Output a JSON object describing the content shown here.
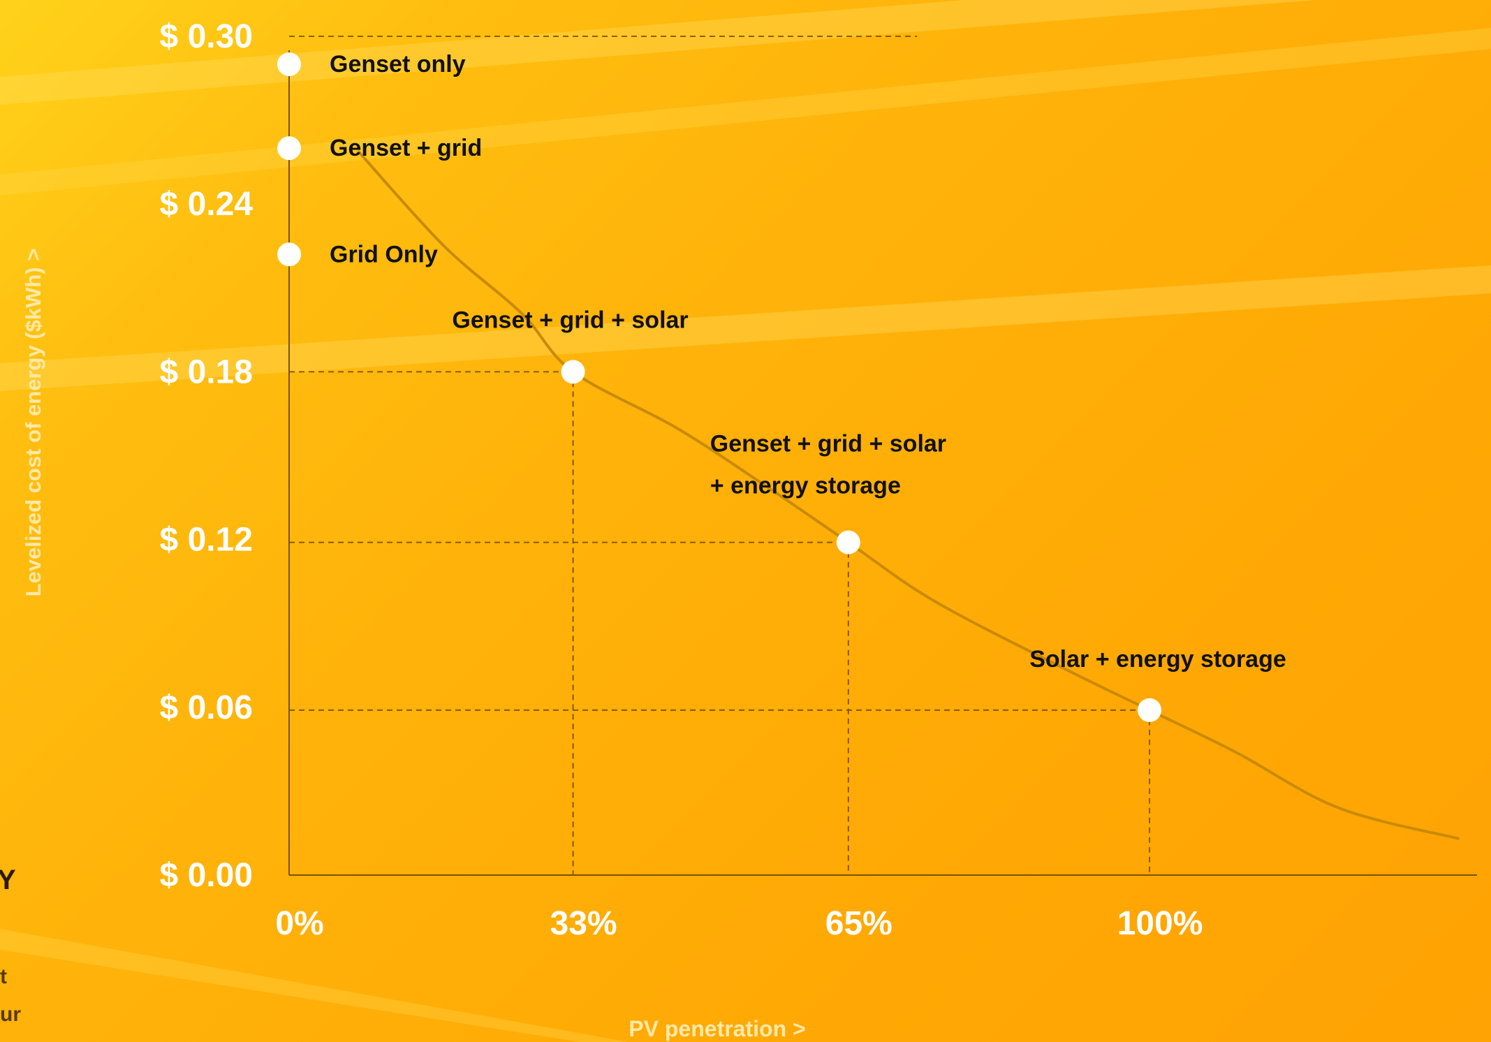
{
  "chart_data": {
    "type": "line",
    "xlabel": "PV penetration >",
    "ylabel": "Levelized cost of energy ($kWh) >",
    "x_ticks": [
      "0%",
      "33%",
      "65%",
      "100%"
    ],
    "y_ticks": [
      "$ 0.30",
      "$ 0.24",
      "$ 0.18",
      "$ 0.12",
      "$ 0.06",
      "$ 0.00"
    ],
    "ylim": [
      0,
      0.3
    ],
    "grid": "dashed guide lines to marked points",
    "points": [
      {
        "label": "Genset only",
        "x": 0,
        "y": 0.29
      },
      {
        "label": "Genset + grid",
        "x": 0,
        "y": 0.26
      },
      {
        "label": "Grid Only",
        "x": 0,
        "y": 0.222
      },
      {
        "label": "Genset + grid + solar",
        "x": 33,
        "y": 0.18
      },
      {
        "label": "Genset + grid + solar",
        "label2": "+ energy storage",
        "x": 65,
        "y": 0.119
      },
      {
        "label": "Solar + energy storage",
        "x": 100,
        "y": 0.059
      }
    ],
    "curve": [
      {
        "x": 8,
        "y": 0.259
      },
      {
        "x": 18,
        "y": 0.225
      },
      {
        "x": 27,
        "y": 0.201
      },
      {
        "x": 33,
        "y": 0.18
      },
      {
        "x": 45,
        "y": 0.16
      },
      {
        "x": 55,
        "y": 0.14
      },
      {
        "x": 65,
        "y": 0.119
      },
      {
        "x": 75,
        "y": 0.098
      },
      {
        "x": 90,
        "y": 0.074
      },
      {
        "x": 100,
        "y": 0.059
      },
      {
        "x": 110,
        "y": 0.044
      },
      {
        "x": 122,
        "y": 0.024
      },
      {
        "x": 136,
        "y": 0.013
      }
    ]
  },
  "side_text": {
    "letter": "Y",
    "line1": "t",
    "line2": "ur"
  },
  "colors": {
    "background": "#ffb00a",
    "curve": "#c98a06",
    "axis": "#7a5200",
    "marker": "#ffffff",
    "tick_text": "#ffffff",
    "annotation_text": "#111111"
  }
}
